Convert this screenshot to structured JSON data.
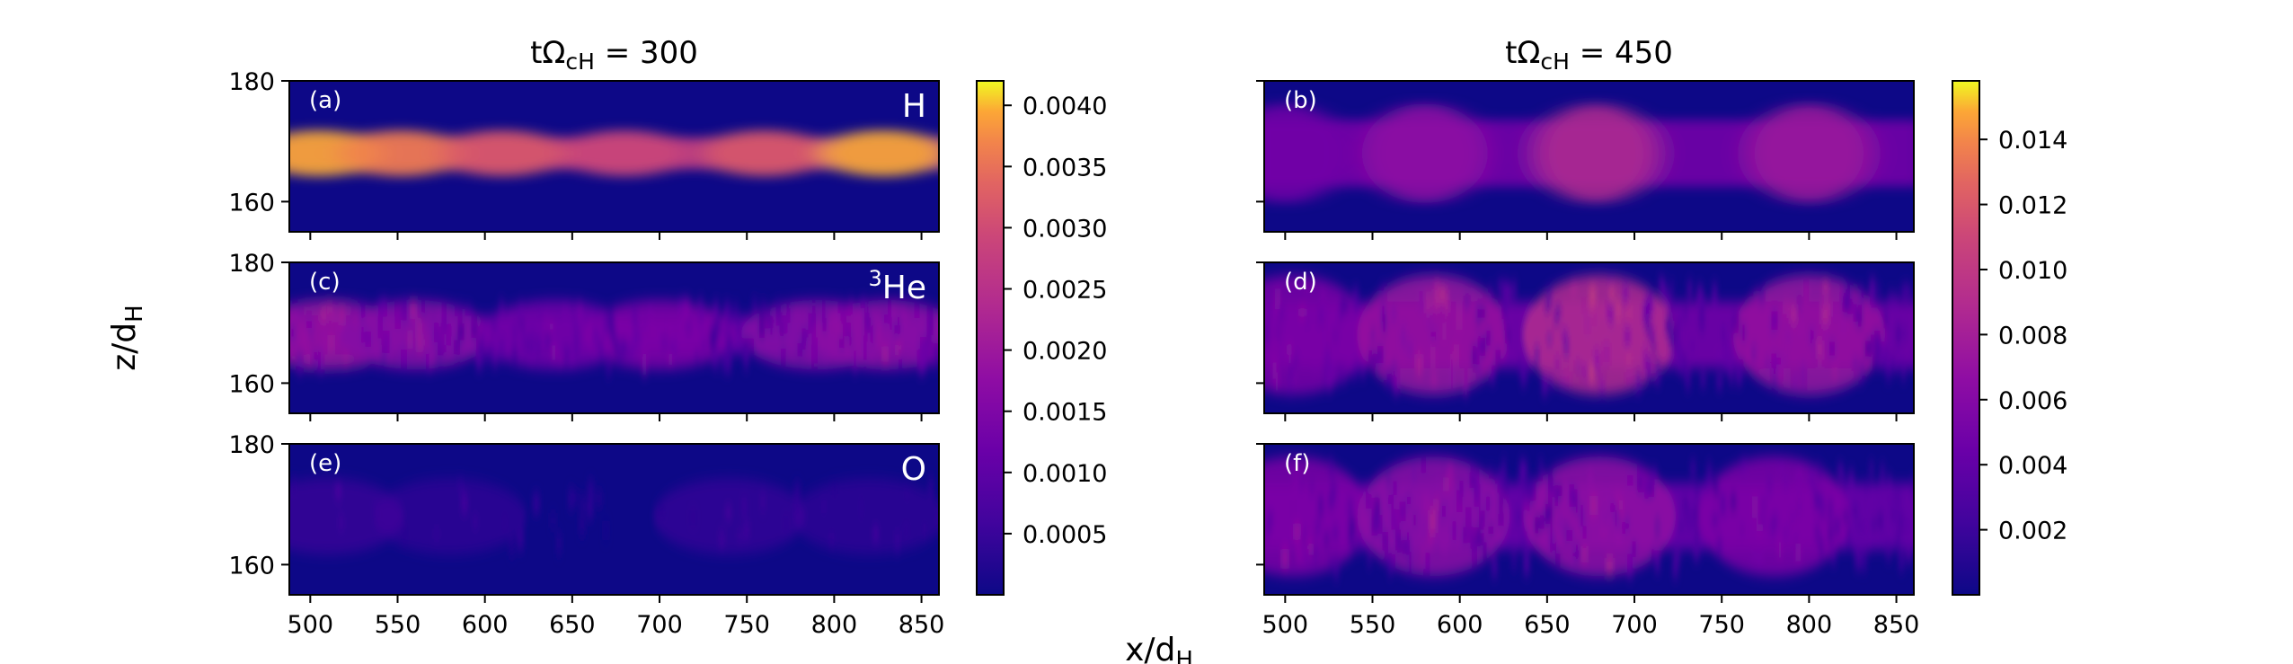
{
  "chart_data": {
    "type": "heatmap",
    "xlabel_parts": [
      "x/d",
      "H"
    ],
    "ylabel_parts": [
      "z/d",
      "H"
    ],
    "xlim": [
      488,
      860
    ],
    "ylim": [
      155,
      180
    ],
    "x_ticks": [
      500,
      550,
      600,
      650,
      700,
      750,
      800,
      850
    ],
    "y_ticks": [
      160,
      180
    ],
    "colormap": "plasma",
    "columns": [
      {
        "title": {
          "t": "tΩ",
          "sub": "cH",
          "eq": " = 300"
        },
        "colorbar": {
          "range": [
            0,
            0.0042
          ],
          "ticks": [
            "0.0005",
            "0.0010",
            "0.0015",
            "0.0020",
            "0.0025",
            "0.0030",
            "0.0035",
            "0.0040"
          ],
          "tick_values": [
            0.0005,
            0.001,
            0.0015,
            0.002,
            0.0025,
            0.003,
            0.0035,
            0.004
          ]
        },
        "panels": [
          {
            "tag": "(a)",
            "species": {
              "sup": "",
              "name": "H"
            },
            "band_center": 168,
            "band_width": 2.6,
            "intensity": 0.9,
            "texture": "smooth",
            "blobs": [
              {
                "x": 505,
                "amp": 1.0
              },
              {
                "x": 552,
                "amp": 0.85
              },
              {
                "x": 610,
                "amp": 0.7
              },
              {
                "x": 680,
                "amp": 0.62
              },
              {
                "x": 760,
                "amp": 0.7
              },
              {
                "x": 828,
                "amp": 1.0
              }
            ]
          },
          {
            "tag": "(c)",
            "species": {
              "sup": "3",
              "name": "He"
            },
            "band_center": 168,
            "band_width": 3.2,
            "intensity": 0.4,
            "texture": "streaky",
            "blobs": [
              {
                "x": 510,
                "amp": 0.9
              },
              {
                "x": 560,
                "amp": 0.75
              },
              {
                "x": 640,
                "amp": 0.6
              },
              {
                "x": 700,
                "amp": 0.7
              },
              {
                "x": 790,
                "amp": 0.75
              },
              {
                "x": 830,
                "amp": 0.8
              }
            ]
          },
          {
            "tag": "(e)",
            "species": {
              "sup": "",
              "name": "O"
            },
            "band_center": 168,
            "band_width": 3.5,
            "intensity": 0.2,
            "texture": "sparse",
            "blobs": [
              {
                "x": 510,
                "amp": 0.8
              },
              {
                "x": 580,
                "amp": 0.6
              },
              {
                "x": 740,
                "amp": 0.7
              },
              {
                "x": 820,
                "amp": 0.6
              }
            ]
          }
        ]
      },
      {
        "title": {
          "t": "tΩ",
          "sub": "cH",
          "eq": " = 450"
        },
        "colorbar": {
          "range": [
            0,
            0.0158
          ],
          "ticks": [
            "0.002",
            "0.004",
            "0.006",
            "0.008",
            "0.010",
            "0.012",
            "0.014"
          ],
          "tick_values": [
            0.002,
            0.004,
            0.006,
            0.008,
            0.01,
            0.012,
            0.014
          ]
        },
        "panels": [
          {
            "tag": "(b)",
            "species": {
              "sup": "",
              "name": ""
            },
            "band_center": 168,
            "band_width": 5.5,
            "intensity": 0.45,
            "texture": "smooth",
            "blobs": [
              {
                "x": 500,
                "amp": 0.55
              },
              {
                "x": 580,
                "amp": 0.75
              },
              {
                "x": 678,
                "amp": 1.0
              },
              {
                "x": 800,
                "amp": 0.85
              }
            ]
          },
          {
            "tag": "(d)",
            "species": {
              "sup": "",
              "name": ""
            },
            "band_center": 168,
            "band_width": 5.5,
            "intensity": 0.45,
            "texture": "streaky",
            "blobs": [
              {
                "x": 505,
                "amp": 0.6
              },
              {
                "x": 585,
                "amp": 0.8
              },
              {
                "x": 680,
                "amp": 1.0
              },
              {
                "x": 800,
                "amp": 0.8
              }
            ]
          },
          {
            "tag": "(f)",
            "species": {
              "sup": "",
              "name": ""
            },
            "band_center": 168,
            "band_width": 5.5,
            "intensity": 0.4,
            "texture": "streaky",
            "blobs": [
              {
                "x": 505,
                "amp": 0.7
              },
              {
                "x": 585,
                "amp": 0.8
              },
              {
                "x": 680,
                "amp": 0.85
              },
              {
                "x": 780,
                "amp": 0.7
              }
            ]
          }
        ]
      }
    ]
  }
}
